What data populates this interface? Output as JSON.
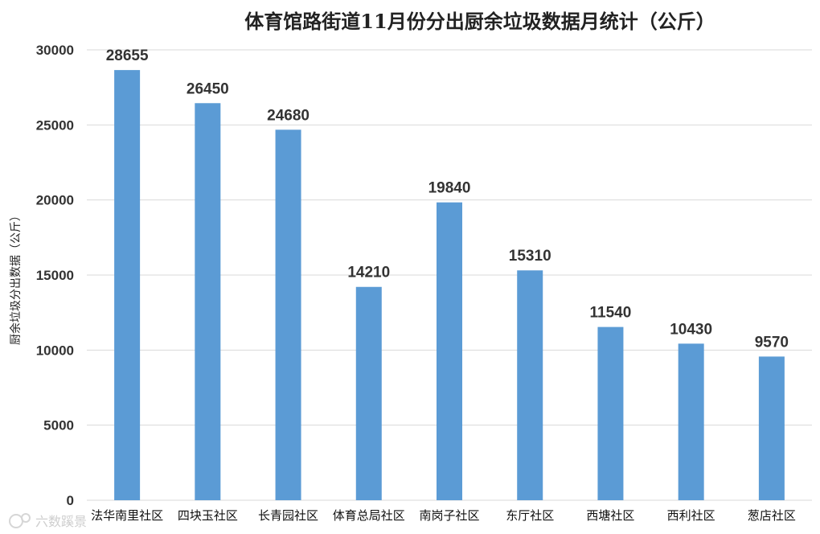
{
  "chart_data": {
    "type": "bar",
    "title": "体育馆路街道11月份分出厨余垃圾数据月统计（公斤）",
    "ylabel": "厨余垃圾分出数据（公斤）",
    "xlabel": "",
    "categories": [
      "法华南里社区",
      "四块玉社区",
      "长青园社区",
      "体育总局社区",
      "南岗子社区",
      "东厅社区",
      "西塘社区",
      "西利社区",
      "葱店社区"
    ],
    "values": [
      28655,
      26450,
      24680,
      14210,
      19840,
      15310,
      11540,
      10430,
      9570
    ],
    "ylim": [
      0,
      30000
    ],
    "yticks": [
      0,
      5000,
      10000,
      15000,
      20000,
      25000,
      30000
    ],
    "grid": true,
    "bar_color": "#5b9bd5",
    "grid_color": "#d9d9d9"
  },
  "watermark": "六数蹊景"
}
